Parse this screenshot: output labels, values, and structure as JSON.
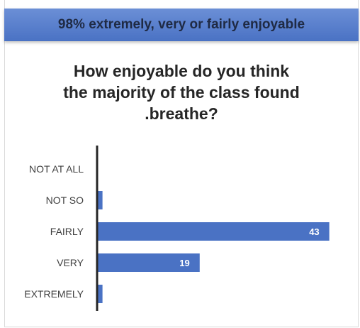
{
  "banner": {
    "text": "98% extremely, very or fairly enjoyable"
  },
  "chart_data": {
    "type": "bar",
    "orientation": "horizontal",
    "title_lines": [
      "How enjoyable do you think",
      "the majority of the class found",
      ".breathe?"
    ],
    "categories": [
      "NOT AT ALL",
      "NOT SO",
      "FAIRLY",
      "VERY",
      "EXTREMELY"
    ],
    "values": [
      0,
      1,
      43,
      19,
      1
    ],
    "value_labels": [
      "",
      "",
      "43",
      "19",
      ""
    ],
    "xlim": [
      0,
      50
    ],
    "grid": false,
    "legend": "none",
    "bar_color": "#4a72c4"
  }
}
